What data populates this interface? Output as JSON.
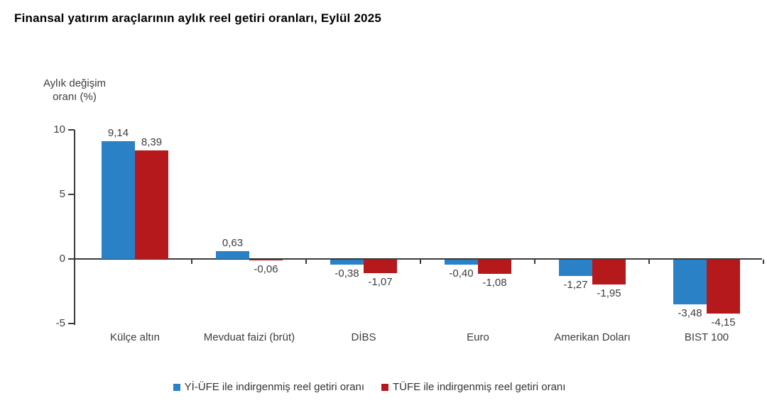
{
  "title": "Finansal yatırım araçlarının aylık reel getiri oranları, Eylül 2025",
  "chart_data": {
    "type": "bar",
    "title": "Finansal yatırım araçlarının aylık reel getiri oranları, Eylül 2025",
    "ylabel": "Aylık değişim\noranı (%)",
    "xlabel": "",
    "ylim": [
      -5,
      10
    ],
    "yticks": [
      10,
      5,
      0,
      -5
    ],
    "grid": false,
    "legend_position": "bottom",
    "number_format": "comma-decimal",
    "categories": [
      "Külçe altın",
      "Mevduat faizi (brüt)",
      "DİBS",
      "Euro",
      "Amerikan Doları",
      "BIST 100"
    ],
    "series": [
      {
        "name": "Yİ-ÜFE ile indirgenmiş reel getiri oranı",
        "color": "#2A81C5",
        "values": [
          9.14,
          0.63,
          -0.38,
          -0.4,
          -1.27,
          -3.48
        ],
        "labels": [
          "9,14",
          "0,63",
          "-0,38",
          "-0,40",
          "-1,27",
          "-3,48"
        ]
      },
      {
        "name": "TÜFE ile indirgenmiş reel getiri oranı",
        "color": "#B5191C",
        "values": [
          8.39,
          -0.06,
          -1.07,
          -1.08,
          -1.95,
          -4.15
        ],
        "labels": [
          "8,39",
          "-0,06",
          "-1,07",
          "-1,08",
          "-1,95",
          "-4,15"
        ]
      }
    ],
    "colors": {
      "axis": "#3a3a3a",
      "text": "#3d3d3d"
    }
  }
}
